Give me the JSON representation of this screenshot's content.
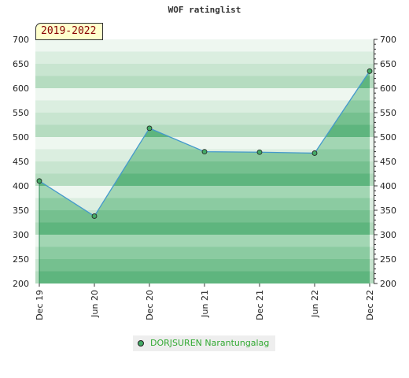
{
  "chart_data": {
    "type": "area",
    "title": "WOF ratinglist",
    "period_label": "2019-2022",
    "x": [
      "Dec 19",
      "Jun 20",
      "Dec 20",
      "Jun 21",
      "Dec 21",
      "Jun 22",
      "Dec 22"
    ],
    "series": [
      {
        "name": "DORJSUREN Narantungalag",
        "values": [
          410,
          338,
          518,
          470,
          469,
          467,
          635
        ]
      }
    ],
    "ylim": [
      200,
      700
    ],
    "yticks": [
      200,
      250,
      300,
      350,
      400,
      450,
      500,
      550,
      600,
      650,
      700
    ],
    "grid": true,
    "legend_position": "bottom",
    "colors": {
      "line": "#4499cc",
      "fill": "#66bb88",
      "marker": "#44aa66",
      "band_dark": "#4fae71",
      "band_light": "#9fd4b0"
    }
  }
}
